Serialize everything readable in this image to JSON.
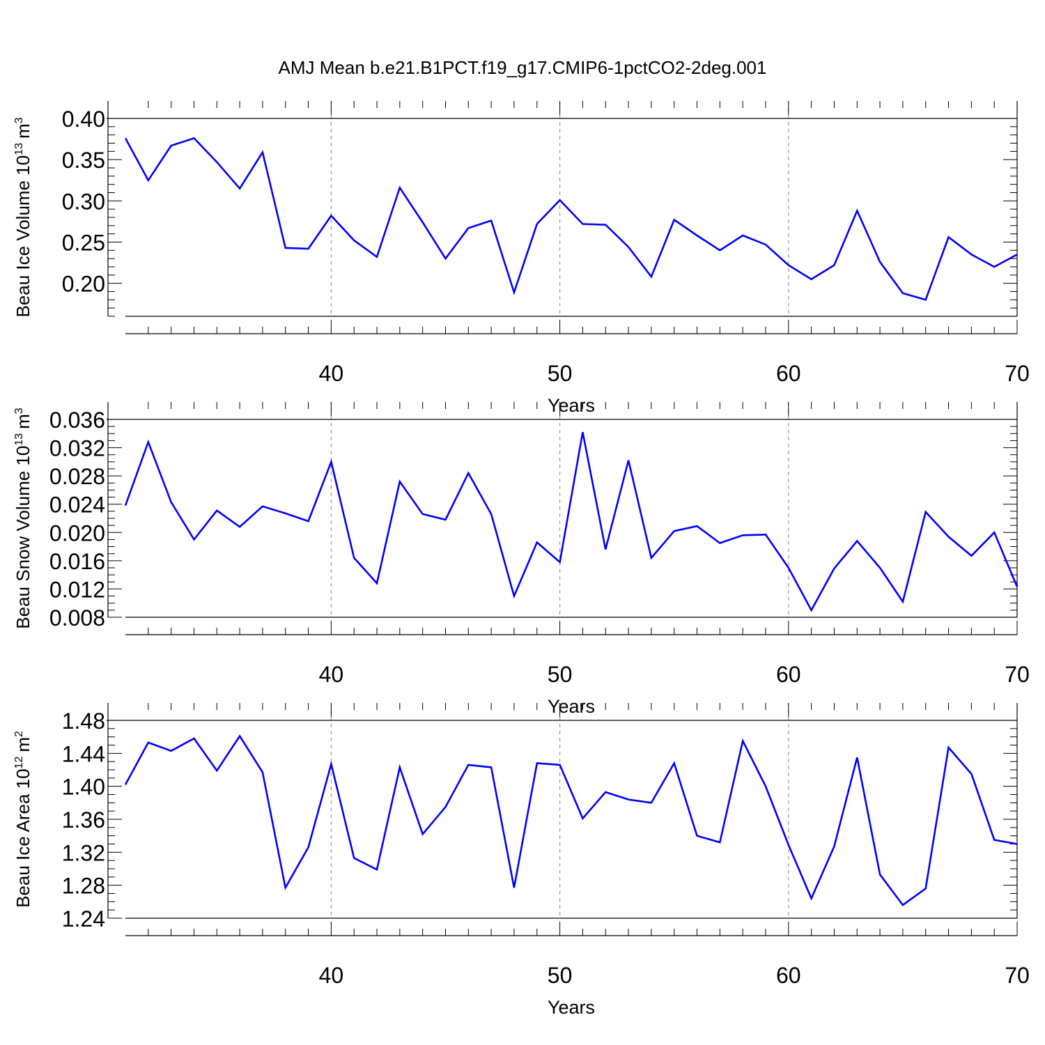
{
  "title": "AMJ Mean b.e21.B1PCT.f19_g17.CMIP6-1pctCO2-2deg.001",
  "colors": {
    "series": "#0000ff",
    "axis": "#000000",
    "grid": "#999999"
  },
  "chart_data": [
    {
      "type": "line",
      "title": "AMJ Mean b.e21.B1PCT.f19_g17.CMIP6-1pctCO2-2deg.001",
      "xlabel": "Years",
      "ylabel_text": "Beau Ice Volume 10",
      "ylabel_exp": "13",
      "ylabel_unit": "m",
      "ylabel_unit_exp": "3",
      "xlim": [
        31,
        70
      ],
      "ylim": [
        0.16,
        0.4
      ],
      "x_ticks": [
        40,
        50,
        60,
        70
      ],
      "x_tick_labels": [
        "40",
        "50",
        "60",
        "70"
      ],
      "y_ticks": [
        0.2,
        0.25,
        0.3,
        0.35,
        0.4
      ],
      "y_tick_labels": [
        "0.20",
        "0.25",
        "0.30",
        "0.35",
        "0.40"
      ],
      "y_minor_step": 0.01,
      "grid_x": [
        40,
        50,
        60
      ],
      "x": [
        31,
        32,
        33,
        34,
        35,
        36,
        37,
        38,
        39,
        40,
        41,
        42,
        43,
        44,
        45,
        46,
        47,
        48,
        49,
        50,
        51,
        52,
        53,
        54,
        55,
        56,
        57,
        58,
        59,
        60,
        61,
        62,
        63,
        64,
        65,
        66,
        67,
        68,
        69,
        70
      ],
      "values": [
        0.376,
        0.325,
        0.367,
        0.376,
        0.347,
        0.315,
        0.359,
        0.243,
        0.242,
        0.282,
        0.252,
        0.232,
        0.316,
        0.274,
        0.23,
        0.267,
        0.276,
        0.189,
        0.272,
        0.301,
        0.272,
        0.271,
        0.244,
        0.208,
        0.277,
        0.258,
        0.24,
        0.258,
        0.247,
        0.222,
        0.205,
        0.222,
        0.288,
        0.226,
        0.188,
        0.18,
        0.256,
        0.235,
        0.22,
        0.235
      ]
    },
    {
      "type": "line",
      "xlabel": "Years",
      "ylabel_text": "Beau Snow Volume 10",
      "ylabel_exp": "13",
      "ylabel_unit": "m",
      "ylabel_unit_exp": "3",
      "xlim": [
        31,
        70
      ],
      "ylim": [
        0.008,
        0.036
      ],
      "x_ticks": [
        40,
        50,
        60,
        70
      ],
      "x_tick_labels": [
        "40",
        "50",
        "60",
        "70"
      ],
      "y_ticks": [
        0.008,
        0.012,
        0.016,
        0.02,
        0.024,
        0.028,
        0.032,
        0.036
      ],
      "y_tick_labels": [
        "0.008",
        "0.012",
        "0.016",
        "0.020",
        "0.024",
        "0.028",
        "0.032",
        "0.036"
      ],
      "y_minor_step": 0.001,
      "grid_x": [
        40,
        50,
        60
      ],
      "x": [
        31,
        32,
        33,
        34,
        35,
        36,
        37,
        38,
        39,
        40,
        41,
        42,
        43,
        44,
        45,
        46,
        47,
        48,
        49,
        50,
        51,
        52,
        53,
        54,
        55,
        56,
        57,
        58,
        59,
        60,
        61,
        62,
        63,
        64,
        65,
        66,
        67,
        68,
        69,
        70
      ],
      "values": [
        0.0238,
        0.0328,
        0.0243,
        0.019,
        0.0231,
        0.0208,
        0.0237,
        0.0227,
        0.0216,
        0.03,
        0.0164,
        0.0128,
        0.0272,
        0.0226,
        0.0218,
        0.0284,
        0.0226,
        0.011,
        0.0186,
        0.0158,
        0.0342,
        0.0176,
        0.0302,
        0.0164,
        0.0202,
        0.0209,
        0.0185,
        0.0196,
        0.0197,
        0.015,
        0.009,
        0.0149,
        0.0188,
        0.015,
        0.0102,
        0.0229,
        0.0194,
        0.0167,
        0.02,
        0.0123
      ]
    },
    {
      "type": "line",
      "xlabel": "Years",
      "ylabel_text": "Beau Ice Area 10",
      "ylabel_exp": "12",
      "ylabel_unit": "m",
      "ylabel_unit_exp": "2",
      "xlim": [
        31,
        70
      ],
      "ylim": [
        1.24,
        1.48
      ],
      "x_ticks": [
        40,
        50,
        60,
        70
      ],
      "x_tick_labels": [
        "40",
        "50",
        "60",
        "70"
      ],
      "y_ticks": [
        1.24,
        1.28,
        1.32,
        1.36,
        1.4,
        1.44,
        1.48
      ],
      "y_tick_labels": [
        "1.24",
        "1.28",
        "1.32",
        "1.36",
        "1.40",
        "1.44",
        "1.48"
      ],
      "y_minor_step": 0.01,
      "grid_x": [
        40,
        50,
        60
      ],
      "x": [
        31,
        32,
        33,
        34,
        35,
        36,
        37,
        38,
        39,
        40,
        41,
        42,
        43,
        44,
        45,
        46,
        47,
        48,
        49,
        50,
        51,
        52,
        53,
        54,
        55,
        56,
        57,
        58,
        59,
        60,
        61,
        62,
        63,
        64,
        65,
        66,
        67,
        68,
        69,
        70
      ],
      "values": [
        1.402,
        1.453,
        1.443,
        1.458,
        1.419,
        1.461,
        1.417,
        1.277,
        1.326,
        1.427,
        1.313,
        1.299,
        1.423,
        1.342,
        1.375,
        1.426,
        1.423,
        1.277,
        1.428,
        1.426,
        1.361,
        1.393,
        1.384,
        1.38,
        1.428,
        1.34,
        1.332,
        1.455,
        1.4,
        1.329,
        1.264,
        1.327,
        1.435,
        1.293,
        1.256,
        1.276,
        1.447,
        1.415,
        1.335,
        1.33
      ]
    }
  ]
}
